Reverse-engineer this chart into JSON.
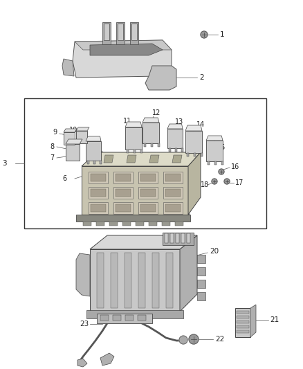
{
  "background_color": "#ffffff",
  "fig_width": 4.38,
  "fig_height": 5.33
}
